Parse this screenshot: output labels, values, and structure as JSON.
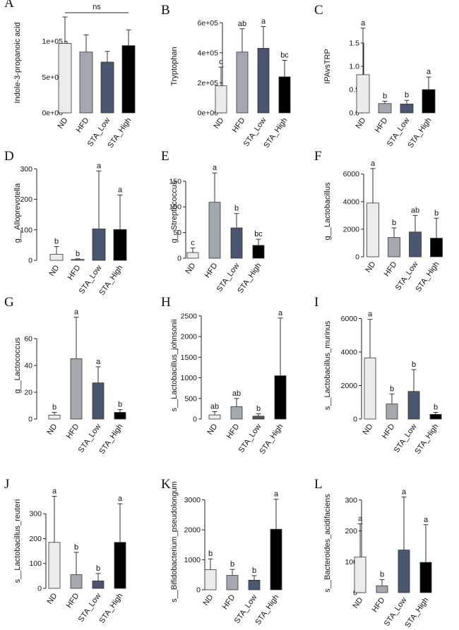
{
  "groups": [
    "ND",
    "HFD",
    "STA_Low",
    "STA_High"
  ],
  "colors": {
    "ND": "#ececec",
    "HFD": "#a3a8af",
    "STA_Low": "#4a5570",
    "STA_High": "#000000",
    "stroke": "#333333"
  },
  "chart_data": [
    {
      "letter": "A",
      "type": "bar",
      "ylabel": "Indole-3-propanoic acid",
      "ylim": [
        0,
        140000
      ],
      "ticks": [
        0,
        50000,
        100000
      ],
      "tick_labels": [
        "0e+00",
        "5e+04",
        "1e+05"
      ],
      "values": [
        97000,
        85000,
        71000,
        94000
      ],
      "errors": [
        37000,
        24000,
        15000,
        22000
      ],
      "letters": [
        "",
        "",
        "",
        ""
      ],
      "annotation": "ns"
    },
    {
      "letter": "B",
      "type": "bar",
      "ylabel": "Tryptophan",
      "ylim": [
        0,
        620000
      ],
      "ticks": [
        0,
        200000,
        400000,
        600000
      ],
      "tick_labels": [
        "0e+00",
        "2e+05",
        "4e+05",
        "6e+05"
      ],
      "values": [
        180000,
        405000,
        430000,
        240000
      ],
      "errors": [
        125000,
        155000,
        145000,
        110000
      ],
      "letters": [
        "c",
        "ab",
        "a",
        "bc"
      ],
      "annotation": ""
    },
    {
      "letter": "C",
      "type": "bar",
      "ylabel": "IPAvsTRP",
      "ylim": [
        0,
        2.0
      ],
      "ticks": [
        0,
        0.5,
        1.0,
        1.5
      ],
      "tick_labels": [
        "0.0",
        "0.5",
        "1.0",
        "1.5"
      ],
      "values": [
        0.82,
        0.2,
        0.19,
        0.5
      ],
      "errors": [
        1.0,
        0.05,
        0.08,
        0.27
      ],
      "letters": [
        "a",
        "b",
        "b",
        "a"
      ],
      "annotation": ""
    },
    {
      "letter": "D",
      "type": "bar",
      "ylabel": "g__Alloprevotella",
      "ylim": [
        0,
        310
      ],
      "ticks": [
        0,
        100,
        200,
        300
      ],
      "tick_labels": [
        "0",
        "100",
        "200",
        "300"
      ],
      "values": [
        20,
        3,
        103,
        101
      ],
      "errors": [
        25,
        2,
        190,
        113
      ],
      "letters": [
        "b",
        "b",
        "a",
        "a"
      ],
      "annotation": ""
    },
    {
      "letter": "E",
      "type": "bar",
      "ylabel": "g__Streptococcus",
      "ylim": [
        0,
        180
      ],
      "ticks": [
        0,
        50,
        100,
        150
      ],
      "tick_labels": [
        "0",
        "50",
        "100",
        "150"
      ],
      "values": [
        11,
        109,
        59,
        25
      ],
      "errors": [
        9,
        57,
        28,
        12
      ],
      "letters": [
        "c",
        "a",
        "b",
        "bc"
      ],
      "annotation": ""
    },
    {
      "letter": "F",
      "type": "bar",
      "ylabel": "g__Lactobacillus",
      "ylim": [
        0,
        6600
      ],
      "ticks": [
        0,
        2000,
        4000,
        6000
      ],
      "tick_labels": [
        "0",
        "2000",
        "4000",
        "6000"
      ],
      "values": [
        3900,
        1400,
        1800,
        1350
      ],
      "errors": [
        2500,
        700,
        1200,
        1450
      ],
      "letters": [
        "a",
        "b",
        "ab",
        "b"
      ],
      "annotation": ""
    },
    {
      "letter": "G",
      "type": "bar",
      "ylabel": "g__Lactococcus",
      "ylim": [
        0,
        80
      ],
      "ticks": [
        0,
        20,
        40,
        60
      ],
      "tick_labels": [
        "0",
        "20",
        "40",
        "60"
      ],
      "values": [
        3,
        45,
        27,
        5
      ],
      "errors": [
        2,
        31,
        12,
        2
      ],
      "letters": [
        "b",
        "a",
        "a",
        "b"
      ],
      "annotation": ""
    },
    {
      "letter": "H",
      "type": "bar",
      "ylabel": "s__Lactobacillus_johnsonii",
      "ylim": [
        0,
        2600
      ],
      "ticks": [
        0,
        500,
        1000,
        1500,
        2000,
        2500
      ],
      "tick_labels": [
        "0",
        "500",
        "1000",
        "1500",
        "2000",
        "2500"
      ],
      "values": [
        100,
        300,
        70,
        1050
      ],
      "errors": [
        80,
        200,
        60,
        1400
      ],
      "letters": [
        "ab",
        "ab",
        "b",
        "a"
      ],
      "annotation": ""
    },
    {
      "letter": "I",
      "type": "bar",
      "ylabel": "s__Lactobacillus_murinus",
      "ylim": [
        0,
        6400
      ],
      "ticks": [
        0,
        2000,
        4000,
        6000
      ],
      "tick_labels": [
        "0",
        "2000",
        "4000",
        "6000"
      ],
      "values": [
        3650,
        900,
        1650,
        280
      ],
      "errors": [
        2300,
        600,
        1300,
        120
      ],
      "letters": [
        "a",
        "b",
        "b",
        "b"
      ],
      "annotation": ""
    },
    {
      "letter": "J",
      "type": "bar",
      "ylabel": "s__Lactobacillus_reuteri",
      "ylim": [
        0,
        380
      ],
      "ticks": [
        0,
        100,
        200,
        300
      ],
      "tick_labels": [
        "0",
        "100",
        "200",
        "300"
      ],
      "values": [
        185,
        55,
        30,
        185
      ],
      "errors": [
        185,
        90,
        30,
        155
      ],
      "letters": [
        "a",
        "b",
        "b",
        "a"
      ],
      "annotation": ""
    },
    {
      "letter": "K",
      "type": "bar",
      "ylabel": "s__Bifidobacterium_pseudolongum",
      "ylim": [
        0,
        3200
      ],
      "ticks": [
        0,
        1000,
        2000,
        3000
      ],
      "tick_labels": [
        "0",
        "1000",
        "2000",
        "3000"
      ],
      "values": [
        670,
        480,
        320,
        2020
      ],
      "errors": [
        360,
        200,
        150,
        1000
      ],
      "letters": [
        "b",
        "b",
        "b",
        "a"
      ],
      "annotation": ""
    },
    {
      "letter": "L",
      "type": "bar",
      "ylabel": "s__Bacteroides_acidifaciens",
      "ylim": [
        0,
        320
      ],
      "ticks": [
        0,
        100,
        200,
        300
      ],
      "tick_labels": [
        "0",
        "100",
        "200",
        "300"
      ],
      "values": [
        115,
        22,
        138,
        98
      ],
      "errors": [
        108,
        20,
        172,
        122
      ],
      "letters": [
        "a",
        "b",
        "a",
        "a"
      ],
      "annotation": ""
    }
  ]
}
